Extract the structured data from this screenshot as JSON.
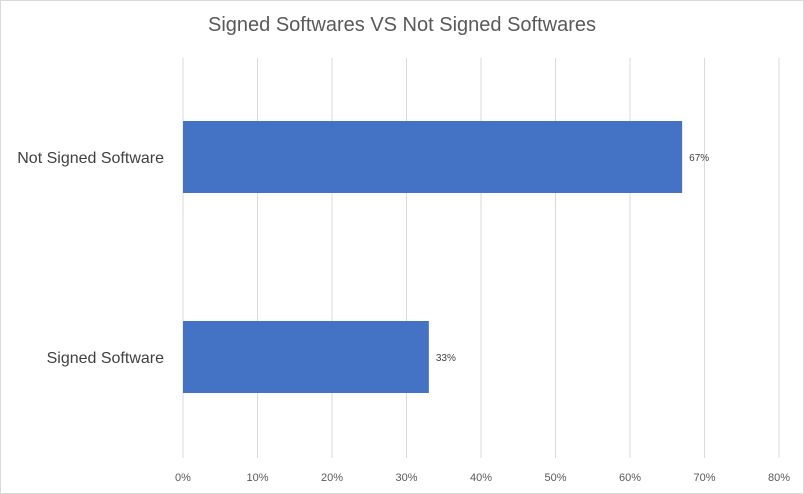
{
  "chart_data": {
    "type": "bar",
    "orientation": "horizontal",
    "title": "Signed Softwares VS Not Signed Softwares",
    "categories": [
      "Not Signed Software",
      "Signed Software"
    ],
    "values": [
      67,
      33
    ],
    "data_labels": [
      "67%",
      "33%"
    ],
    "xlim": [
      0,
      80
    ],
    "x_ticks": [
      "0%",
      "10%",
      "20%",
      "30%",
      "40%",
      "50%",
      "60%",
      "70%",
      "80%"
    ],
    "grid": true,
    "legend": "none",
    "bar_color": "#4472C4",
    "grid_color": "#d9d9d9"
  }
}
